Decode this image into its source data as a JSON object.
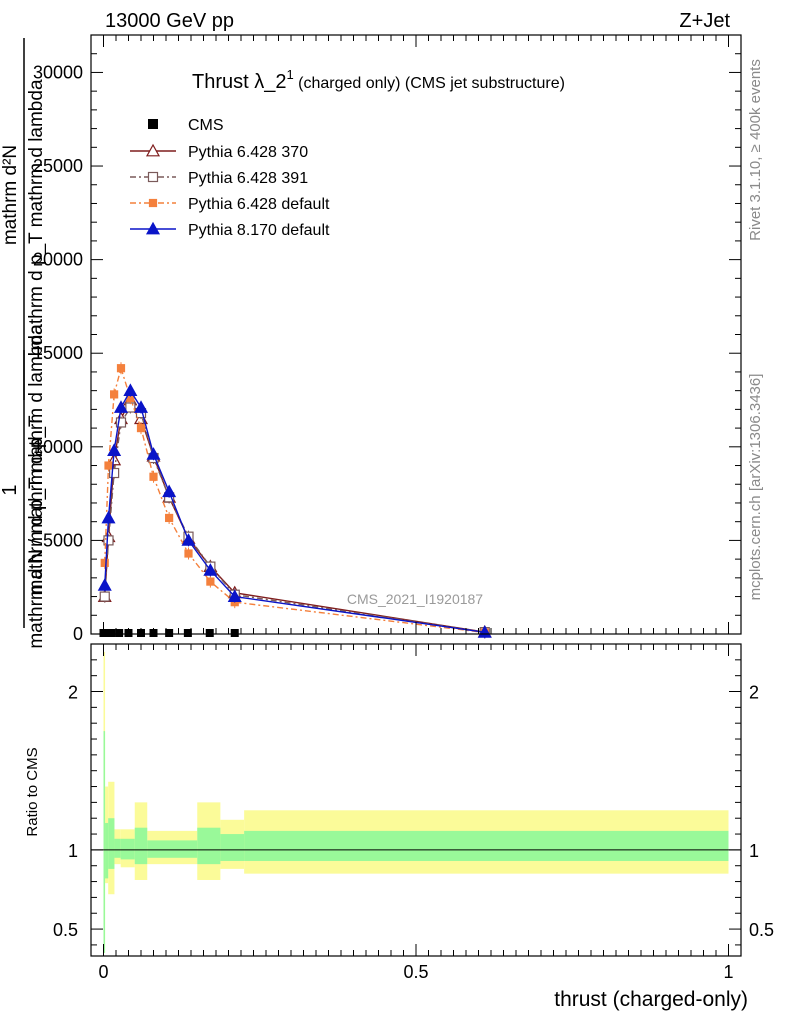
{
  "header": {
    "left": "13000 GeV pp",
    "right": "Z+Jet"
  },
  "side_labels": {
    "rivet": "Rivet 3.1.10, ≥ 400k events",
    "site": "mcplots.cern.ch [arXiv:1306.3436]"
  },
  "colors": {
    "cms": "#000000",
    "p6_370": "#7f1d1d",
    "p6_391": "#7a5a5a",
    "p6_default": "#f4803c",
    "p8_default": "#0a14c8",
    "band_inner": "#99f999",
    "band_outer": "#fbfb99"
  },
  "chart_data": [
    {
      "type": "line",
      "title": "Thrust λ_2",
      "title_sup": "1",
      "title_suffix": " (charged only) (CMS jet substructure)",
      "watermark": "CMS_2021_I1920187",
      "ylabel_top": "mathrm d²N",
      "ylabel_mid": "mathrm d p_T mathrm d lambda",
      "ylabel_one": "1",
      "ylabel_bottom": "mathrm d N / mathrm d p_T",
      "xlim": [
        -0.02,
        1.02
      ],
      "ylim": [
        0,
        32000
      ],
      "yticks": [
        0,
        5000,
        10000,
        15000,
        20000,
        25000,
        30000
      ],
      "ytick_labels": [
        "0",
        "5000",
        "10000",
        "15000",
        "20000",
        "25000",
        "30000"
      ],
      "legend": [
        "CMS",
        "Pythia 6.428 370",
        "Pythia 6.428 391",
        "Pythia 6.428 default",
        "Pythia 8.170 default"
      ],
      "cms_x": [
        0.0,
        0.005,
        0.0125,
        0.025,
        0.04,
        0.06,
        0.08,
        0.105,
        0.135,
        0.17,
        0.21
      ],
      "series": [
        {
          "name": "Pythia 6.428 370",
          "x": [
            0.002,
            0.008,
            0.017,
            0.028,
            0.043,
            0.06,
            0.08,
            0.105,
            0.136,
            0.171,
            0.21,
            0.61
          ],
          "values": [
            2000,
            5200,
            9300,
            11500,
            12500,
            11500,
            9500,
            7300,
            5100,
            3600,
            2200,
            100
          ]
        },
        {
          "name": "Pythia 6.428 391",
          "x": [
            0.002,
            0.008,
            0.017,
            0.028,
            0.043,
            0.06,
            0.08,
            0.105,
            0.136,
            0.171,
            0.21,
            0.61
          ],
          "values": [
            2000,
            5000,
            8600,
            11300,
            12100,
            11800,
            9400,
            7300,
            5200,
            3600,
            2100,
            100
          ]
        },
        {
          "name": "Pythia 6.428 default",
          "x": [
            0.002,
            0.008,
            0.017,
            0.028,
            0.043,
            0.06,
            0.08,
            0.105,
            0.136,
            0.171,
            0.21,
            0.61
          ],
          "values": [
            3800,
            9000,
            12800,
            14200,
            12600,
            11000,
            8400,
            6200,
            4300,
            2800,
            1700,
            80
          ]
        },
        {
          "name": "Pythia 8.170 default",
          "x": [
            0.002,
            0.008,
            0.017,
            0.028,
            0.043,
            0.06,
            0.08,
            0.105,
            0.136,
            0.171,
            0.21,
            0.61
          ],
          "values": [
            2600,
            6200,
            9800,
            12100,
            13000,
            12100,
            9600,
            7600,
            5000,
            3400,
            2000,
            90
          ]
        }
      ]
    },
    {
      "type": "area",
      "ylabel": "Ratio to CMS",
      "xlabel": "thrust (charged-only)",
      "xlim": [
        -0.02,
        1.02
      ],
      "ylim": [
        0.33,
        2.3
      ],
      "yticks": [
        0.5,
        1,
        2
      ],
      "ytick_labels": [
        "0.5",
        "1",
        "2"
      ],
      "xticks": [
        0,
        0.5,
        1
      ],
      "xtick_labels": [
        "0",
        "0.5",
        "1"
      ],
      "reference": 1,
      "bins": [
        0.0,
        0.0025,
        0.0075,
        0.0175,
        0.0275,
        0.05,
        0.07,
        0.15,
        0.187,
        0.225,
        1.0
      ],
      "inner_low": [
        0.35,
        0.82,
        0.88,
        0.95,
        0.94,
        0.91,
        0.95,
        0.91,
        0.93,
        0.93
      ],
      "inner_high": [
        1.75,
        1.17,
        1.2,
        1.07,
        1.07,
        1.14,
        1.06,
        1.14,
        1.1,
        1.12
      ],
      "outer_low": [
        0.35,
        0.79,
        0.72,
        0.91,
        0.89,
        0.81,
        0.91,
        0.81,
        0.88,
        0.85
      ],
      "outer_high": [
        2.25,
        1.4,
        1.43,
        1.13,
        1.13,
        1.3,
        1.12,
        1.3,
        1.19,
        1.25
      ]
    }
  ]
}
